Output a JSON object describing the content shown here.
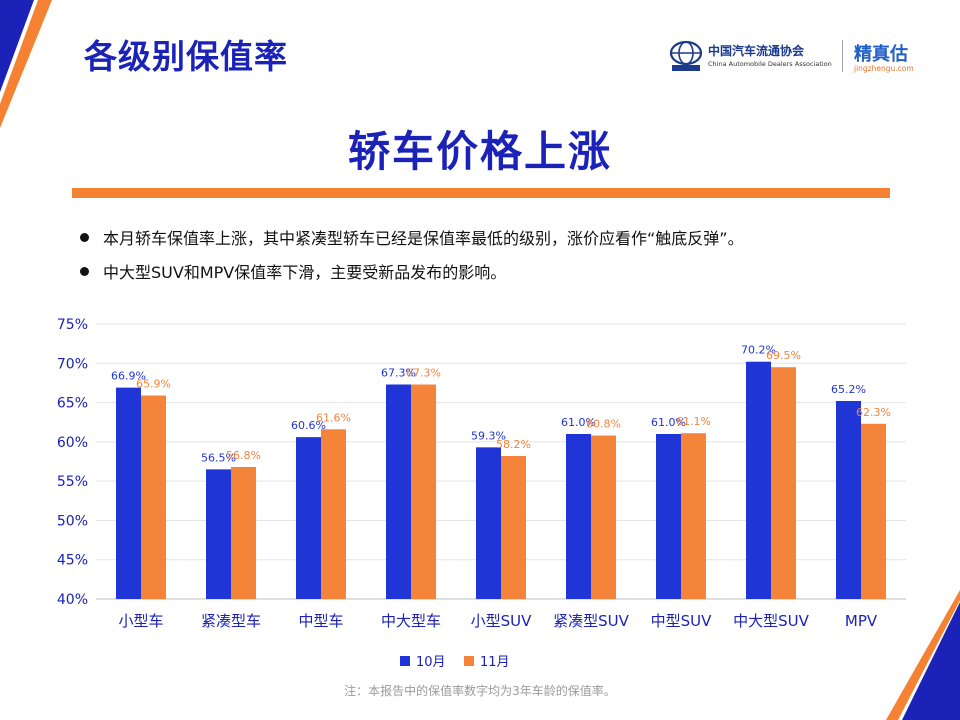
{
  "header": {
    "page_title": "各级别保值率",
    "logo_cn": "中国汽车流通协会",
    "logo_en": "China Automobile Dealers Association",
    "brand_name": "精真估",
    "brand_url": "jingzhengu.com"
  },
  "headline": "轿车价格上涨",
  "bullets": [
    "本月轿车保值率上涨，其中紧凑型轿车已经是保值率最低的级别，涨价应看作“触底反弹”。",
    "中大型SUV和MPV保值率下滑，主要受新品发布的影响。"
  ],
  "footnote": "注：本报告中的保值率数字均为3年车龄的保值率。",
  "colors": {
    "accent_blue": "#1a22b8",
    "accent_orange": "#f48232",
    "series_blue": "#1f35d6",
    "series_orange": "#f4843a"
  },
  "chart_data": {
    "type": "bar",
    "categories": [
      "小型车",
      "紧凑型车",
      "中型车",
      "中大型车",
      "小型SUV",
      "紧凑型SUV",
      "中型SUV",
      "中大型SUV",
      "MPV"
    ],
    "series": [
      {
        "name": "10月",
        "color": "#1f35d6",
        "values": [
          66.9,
          56.5,
          60.6,
          67.3,
          59.3,
          61.0,
          61.0,
          70.2,
          65.2
        ]
      },
      {
        "name": "11月",
        "color": "#f4843a",
        "values": [
          65.9,
          56.8,
          61.6,
          67.3,
          58.2,
          60.8,
          61.1,
          69.5,
          62.3
        ]
      }
    ],
    "y_ticks": [
      "40%",
      "45%",
      "50%",
      "55%",
      "60%",
      "65%",
      "70%",
      "75%"
    ],
    "ylim": [
      40,
      75
    ],
    "grid": true,
    "legend_position": "bottom-center",
    "value_suffix": "%"
  }
}
